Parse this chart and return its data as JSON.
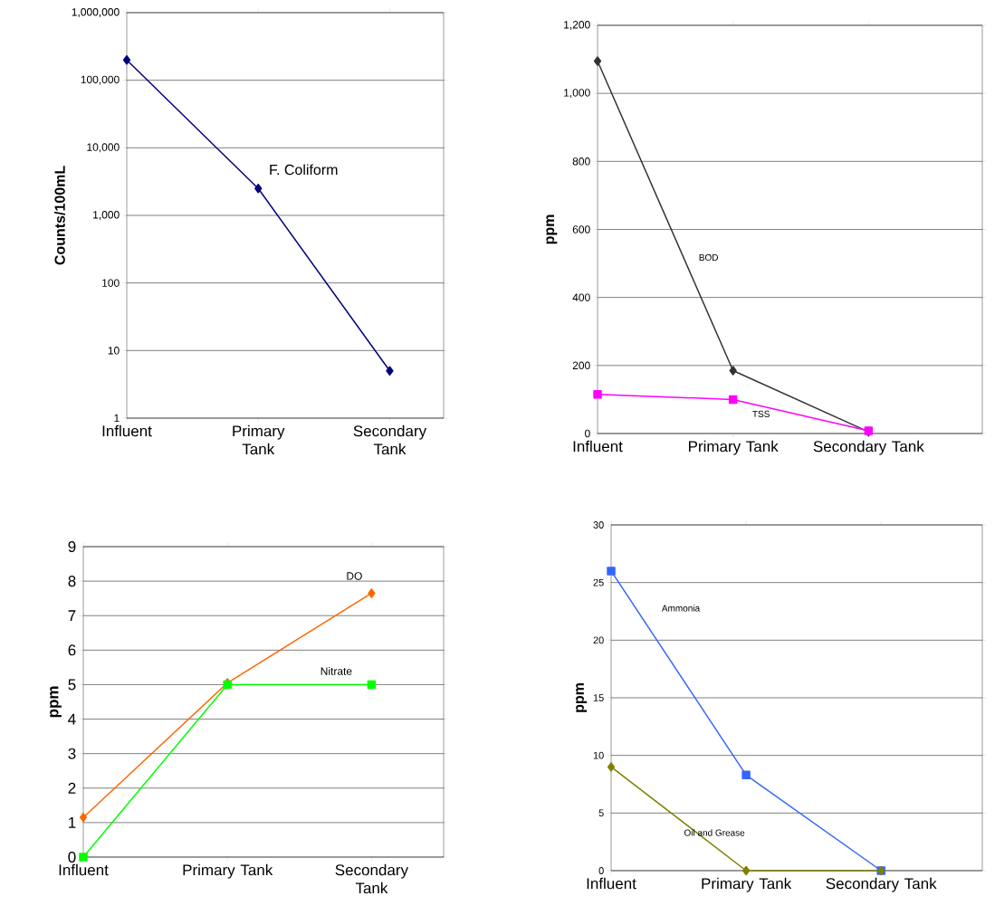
{
  "chart_data": [
    {
      "type": "line",
      "ylabel": "Counts/100mL",
      "categories": [
        "Influent",
        "Primary Tank",
        "Secondary Tank"
      ],
      "log": true,
      "grid": "y",
      "ylim": [
        1,
        1000000
      ],
      "yticks": [
        1,
        10,
        100,
        {
          "value": 1000,
          "label": "1,000"
        },
        {
          "value": 10000,
          "label": "10,000"
        },
        {
          "value": 100000,
          "label": "100,000"
        },
        {
          "value": 1000000,
          "label": "1,000,000"
        }
      ],
      "series": [
        {
          "name": "F. Coliform",
          "color": "#000080",
          "marker": "diamond",
          "values": [
            200000,
            2500,
            5
          ]
        }
      ]
    },
    {
      "type": "line",
      "ylabel": "ppm",
      "categories": [
        "Influent",
        "Primary Tank",
        "Secondary Tank"
      ],
      "grid": "y",
      "ylim": [
        0,
        1200
      ],
      "yticks": [
        0,
        200,
        400,
        600,
        800,
        {
          "value": 1000,
          "label": "1,000"
        },
        {
          "value": 1200,
          "label": "1,200"
        }
      ],
      "series": [
        {
          "name": "BOD",
          "color": "#333333",
          "marker": "diamond",
          "values": [
            1095,
            185,
            5
          ]
        },
        {
          "name": "TSS",
          "color": "#ff00ff",
          "marker": "square",
          "values": [
            115,
            100,
            8
          ]
        }
      ]
    },
    {
      "type": "line",
      "ylabel": "ppm",
      "categories": [
        "Influent",
        "Primary Tank",
        "Secondary Tank"
      ],
      "grid": "y",
      "ylim": [
        0,
        9
      ],
      "yticks": [
        0,
        1,
        2,
        3,
        4,
        5,
        6,
        7,
        8,
        9
      ],
      "series": [
        {
          "name": "DO",
          "color": "#ff6600",
          "marker": "diamond",
          "values": [
            1.15,
            5.05,
            7.65
          ]
        },
        {
          "name": "Nitrate",
          "color": "#00ff00",
          "marker": "square",
          "values": [
            0,
            5,
            5
          ]
        }
      ]
    },
    {
      "type": "line",
      "ylabel": "ppm",
      "categories": [
        "Influent",
        "Primary Tank",
        "Secondary Tank"
      ],
      "grid": "y",
      "ylim": [
        0,
        30
      ],
      "yticks": [
        0,
        5,
        10,
        15,
        20,
        25,
        30
      ],
      "series": [
        {
          "name": "Ammonia",
          "color": "#3366ff",
          "marker": "square",
          "values": [
            26,
            8.3,
            0
          ]
        },
        {
          "name": "Oil and Grease",
          "color": "#808000",
          "marker": "diamond",
          "values": [
            9,
            0,
            0
          ]
        }
      ]
    }
  ]
}
